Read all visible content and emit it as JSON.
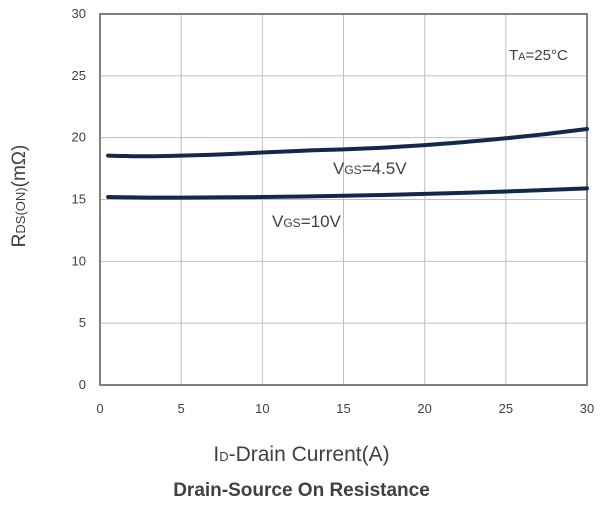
{
  "chart_data": {
    "type": "line",
    "title": "Drain-Source On Resistance",
    "xlabel": {
      "main1": "I",
      "sub": "D",
      "main2": "-Drain Current(A)"
    },
    "ylabel": {
      "main1": "R",
      "sub": "DS(ON)",
      "main2": "(mΩ)"
    },
    "xlim": [
      0,
      30
    ],
    "ylim": [
      0,
      30
    ],
    "xticks": [
      "0",
      "5",
      "10",
      "15",
      "20",
      "25",
      "30"
    ],
    "yticks": [
      "0",
      "5",
      "10",
      "15",
      "20",
      "25",
      "30"
    ],
    "grid": true,
    "series": [
      {
        "name": "VGS=4.5V",
        "x": [
          0.5,
          1.5,
          3,
          5,
          7.5,
          10,
          12.5,
          15,
          17.5,
          20,
          22.5,
          25,
          27.5,
          30
        ],
        "y": [
          18.55,
          18.52,
          18.5,
          18.55,
          18.65,
          18.8,
          18.95,
          19.05,
          19.2,
          19.4,
          19.65,
          19.95,
          20.3,
          20.7
        ]
      },
      {
        "name": "VGS=10V",
        "x": [
          0.5,
          3,
          5,
          10,
          15,
          20,
          25,
          30
        ],
        "y": [
          15.2,
          15.15,
          15.15,
          15.2,
          15.3,
          15.45,
          15.65,
          15.9
        ]
      }
    ],
    "annotations": {
      "temp": {
        "main1": "T",
        "sub": "A",
        "main2": "=25°C"
      },
      "vgs45": {
        "main1": "V",
        "sub": "GS",
        "main2": "=4.5V"
      },
      "vgs10": {
        "main1": "V",
        "sub": "GS",
        "main2": "=10V"
      }
    },
    "colors": {
      "line": "#13294b",
      "grid": "#bfbfbf",
      "axis": "#808080",
      "text": "#404040"
    }
  }
}
